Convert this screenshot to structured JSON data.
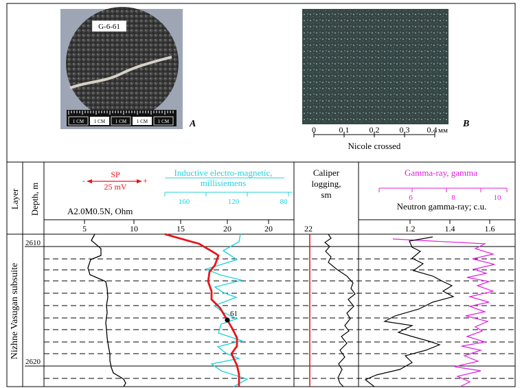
{
  "photo_a": {
    "sample_label": "G-6-61",
    "scale_units": [
      "1 CM",
      "1 CM",
      "1 CM",
      "1 CM",
      "1 CM"
    ],
    "letter": "A"
  },
  "photo_b": {
    "letter": "B",
    "scale_ticks": [
      "0",
      "0.1",
      "0.2",
      "0.3",
      "0.4"
    ],
    "scale_unit": "мм",
    "caption": "Nicole crossed"
  },
  "log": {
    "col_layer": "Layer",
    "col_depth": "Depth, m",
    "layer_name": "Nizhne Vasugan subsuite",
    "depth_labels": [
      "2610",
      "2620"
    ],
    "sp": {
      "label": "SP",
      "scale": "25 mV",
      "minus": "-",
      "plus": "+"
    },
    "inductive": {
      "title": "Inductive electro-magnetic,",
      "unit": "millisiemens",
      "ticks": [
        "160",
        "120",
        "80"
      ]
    },
    "resistivity": {
      "title": "A2.0M0.5N, Ohm",
      "ticks": [
        "5",
        "10",
        "15",
        "20",
        "20"
      ]
    },
    "caliper": {
      "title": "Caliper",
      "title2": "logging,",
      "unit": "sm",
      "tick": "22"
    },
    "gamma": {
      "title": "Gamma-ray, gamma",
      "ticks": [
        "6",
        "8",
        "10"
      ]
    },
    "neutron": {
      "title": "Neutron gamma-ray; c.u.",
      "ticks": [
        "1.2",
        "1.4",
        "1.6"
      ]
    },
    "sample_marker": "61",
    "colors": {
      "sp": "#e8141b",
      "inductive": "#22d3dd",
      "gamma": "#e21ee1",
      "caliper_ref": "#e8141b",
      "curve": "#000000"
    }
  }
}
